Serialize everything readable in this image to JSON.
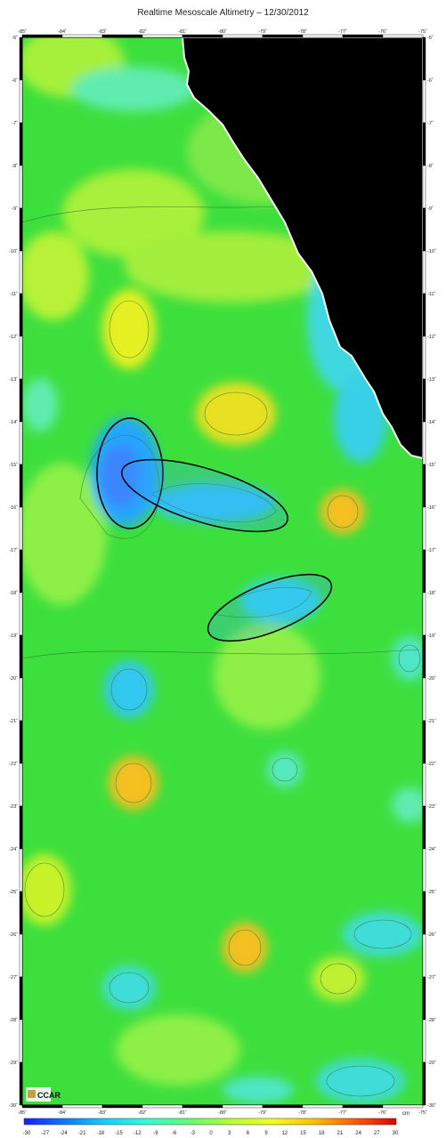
{
  "title": "Realtime Mesoscale Altimetry – 12/30/2012",
  "axes": {
    "lon_ticks": [
      "-85˚",
      "-84˚",
      "-83˚",
      "-82˚",
      "-81˚",
      "-80˚",
      "-79˚",
      "-78˚",
      "-77˚",
      "-76˚",
      "-75˚"
    ],
    "lat_ticks": [
      "-5˚",
      "-6˚",
      "-7˚",
      "-8˚",
      "-9˚",
      "-10˚",
      "-11˚",
      "-12˚",
      "-13˚",
      "-14˚",
      "-15˚",
      "-16˚",
      "-17˚",
      "-18˚",
      "-19˚",
      "-20˚",
      "-21˚",
      "-22˚",
      "-23˚",
      "-24˚",
      "-25˚",
      "-26˚",
      "-27˚",
      "-28˚",
      "-29˚",
      "-30˚"
    ]
  },
  "colorbar": {
    "unit": "cm",
    "ticks": [
      "-30",
      "-27",
      "-24",
      "-21",
      "-18",
      "-15",
      "-12",
      "-9",
      "-6",
      "-3",
      "0",
      "3",
      "6",
      "9",
      "12",
      "15",
      "18",
      "21",
      "24",
      "27",
      "30"
    ],
    "colors": [
      "#1a1aff",
      "#0a7cff",
      "#14d4ff",
      "#30ffd0",
      "#60ff70",
      "#b8ff30",
      "#f0ff20",
      "#ffc000",
      "#ff5a00",
      "#e00000"
    ]
  },
  "logo": "CCAR",
  "colors": {
    "land": "#000000",
    "background_field": "#3ddf3d"
  }
}
